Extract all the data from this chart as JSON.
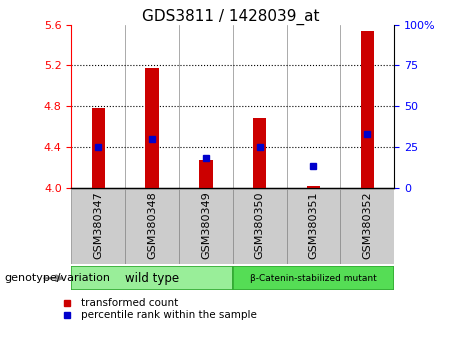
{
  "title": "GDS3811 / 1428039_at",
  "samples": [
    "GSM380347",
    "GSM380348",
    "GSM380349",
    "GSM380350",
    "GSM380351",
    "GSM380352"
  ],
  "red_values": [
    4.78,
    5.18,
    4.27,
    4.68,
    4.02,
    5.54
  ],
  "blue_values_pct": [
    25,
    30,
    18,
    25,
    13,
    33
  ],
  "ylim_left": [
    4.0,
    5.6
  ],
  "ylim_right": [
    0,
    100
  ],
  "yticks_left": [
    4.0,
    4.4,
    4.8,
    5.2,
    5.6
  ],
  "yticks_right": [
    0,
    25,
    50,
    75,
    100
  ],
  "ytick_labels_right": [
    "0",
    "25",
    "50",
    "75",
    "100%"
  ],
  "bar_color": "#cc0000",
  "dot_color": "#0000cc",
  "bar_width": 0.25,
  "groups": [
    {
      "label": "wild type",
      "indices": [
        0,
        1,
        2
      ],
      "color": "#99ee99"
    },
    {
      "label": "β-Catenin-stabilized mutant",
      "indices": [
        3,
        4,
        5
      ],
      "color": "#55dd55"
    }
  ],
  "legend_items": [
    {
      "label": "transformed count",
      "color": "#cc0000"
    },
    {
      "label": "percentile rank within the sample",
      "color": "#0000cc"
    }
  ],
  "genotype_label": "genotype/variation",
  "background_color": "#ffffff",
  "plot_bg": "#ffffff",
  "xtick_area_bg": "#cccccc",
  "grid_dotted_color": "#000000",
  "title_fontsize": 11,
  "tick_fontsize": 8,
  "label_fontsize": 8
}
